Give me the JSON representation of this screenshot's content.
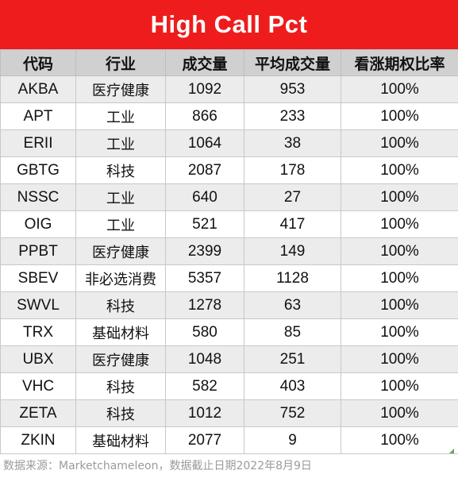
{
  "title": "High Call Pct",
  "columns": [
    "代码",
    "行业",
    "成交量",
    "平均成交量",
    "看涨期权比率"
  ],
  "rows": [
    [
      "AKBA",
      "医疗健康",
      "1092",
      "953",
      "100%"
    ],
    [
      "APT",
      "工业",
      "866",
      "233",
      "100%"
    ],
    [
      "ERII",
      "工业",
      "1064",
      "38",
      "100%"
    ],
    [
      "GBTG",
      "科技",
      "2087",
      "178",
      "100%"
    ],
    [
      "NSSC",
      "工业",
      "640",
      "27",
      "100%"
    ],
    [
      "OIG",
      "工业",
      "521",
      "417",
      "100%"
    ],
    [
      "PPBT",
      "医疗健康",
      "2399",
      "149",
      "100%"
    ],
    [
      "SBEV",
      "非必选消费",
      "5357",
      "1128",
      "100%"
    ],
    [
      "SWVL",
      "科技",
      "1278",
      "63",
      "100%"
    ],
    [
      "TRX",
      "基础材料",
      "580",
      "85",
      "100%"
    ],
    [
      "UBX",
      "医疗健康",
      "1048",
      "251",
      "100%"
    ],
    [
      "VHC",
      "科技",
      "582",
      "403",
      "100%"
    ],
    [
      "ZETA",
      "科技",
      "1012",
      "752",
      "100%"
    ],
    [
      "ZKIN",
      "基础材料",
      "2077",
      "9",
      "100%"
    ]
  ],
  "footer": "数据来源：Marketchameleon，数据截止日期2022年8月9日",
  "colors": {
    "title_bg": "#ee1c1c",
    "header_bg": "#d0d0d0",
    "row_alt_bg": "#ececec"
  }
}
